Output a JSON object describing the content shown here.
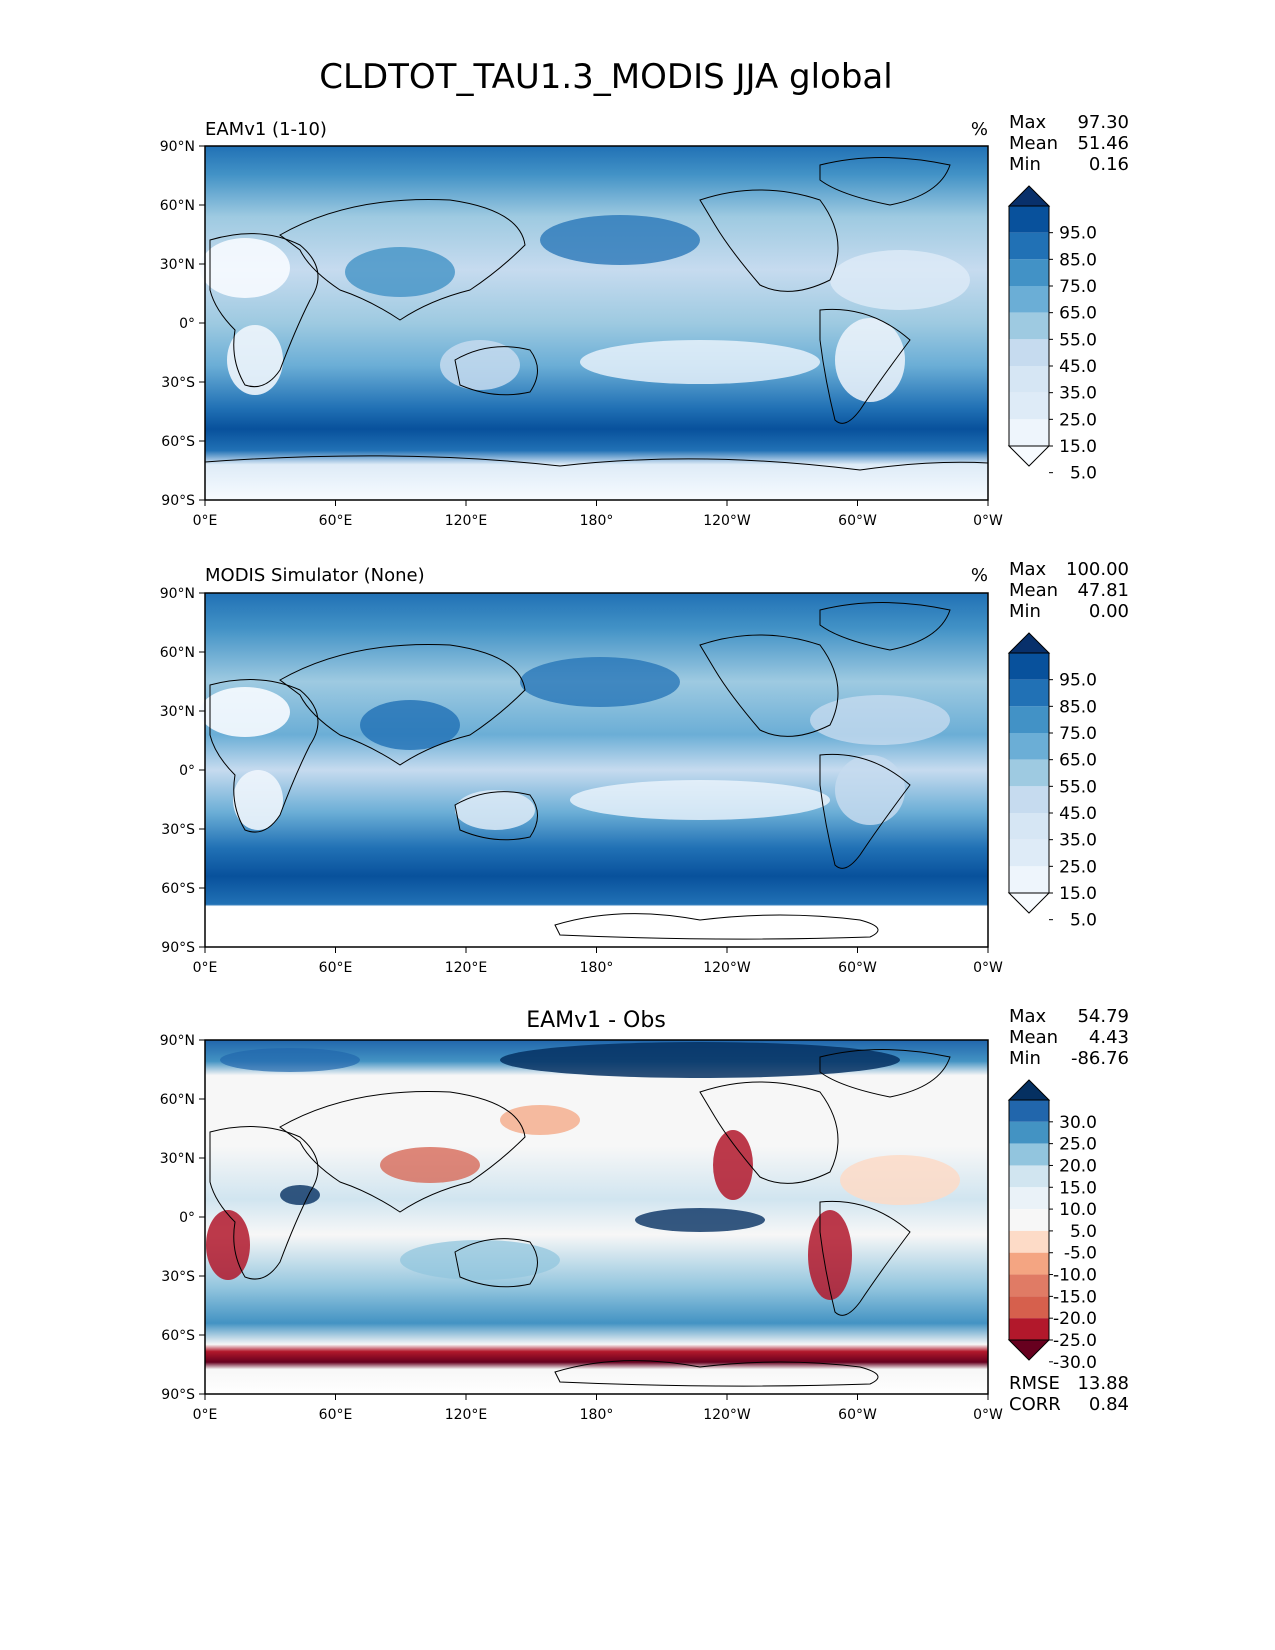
{
  "figure_title": "CLDTOT_TAU1.3_MODIS JJA global",
  "x_ticks": [
    "0°E",
    "60°E",
    "120°E",
    "180°",
    "120°W",
    "60°W",
    "0°W"
  ],
  "y_ticks": [
    "90°N",
    "60°N",
    "30°N",
    "0°",
    "30°S",
    "60°S",
    "90°S"
  ],
  "panels": [
    {
      "name": "test",
      "left_title": "EAMv1 (1-10)",
      "center_title": "",
      "units": "%",
      "stats": [
        {
          "label": "Max",
          "value": "97.30"
        },
        {
          "label": "Mean",
          "value": "51.46"
        },
        {
          "label": "Min",
          "value": "0.16"
        }
      ],
      "colorbar": {
        "labels": [
          "95.0",
          "85.0",
          "75.0",
          "65.0",
          "55.0",
          "45.0",
          "35.0",
          "25.0",
          "15.0",
          "5.0"
        ],
        "colors": [
          "#08306b",
          "#08519c",
          "#2171b5",
          "#4292c6",
          "#6baed6",
          "#9ecae1",
          "#c6dbef",
          "#d6e6f4",
          "#deebf7",
          "#eef5fc",
          "#f7fbff"
        ]
      },
      "extra_stats": []
    },
    {
      "name": "reference",
      "left_title": "MODIS Simulator (None)",
      "center_title": "",
      "units": "%",
      "stats": [
        {
          "label": "Max",
          "value": "100.00"
        },
        {
          "label": "Mean",
          "value": "47.81"
        },
        {
          "label": "Min",
          "value": "0.00"
        }
      ],
      "colorbar": {
        "labels": [
          "95.0",
          "85.0",
          "75.0",
          "65.0",
          "55.0",
          "45.0",
          "35.0",
          "25.0",
          "15.0",
          "5.0"
        ],
        "colors": [
          "#08306b",
          "#08519c",
          "#2171b5",
          "#4292c6",
          "#6baed6",
          "#9ecae1",
          "#c6dbef",
          "#d6e6f4",
          "#deebf7",
          "#eef5fc",
          "#f7fbff"
        ]
      },
      "extra_stats": []
    },
    {
      "name": "difference",
      "left_title": "",
      "center_title": "EAMv1 - Obs",
      "units": "",
      "stats": [
        {
          "label": "Max",
          "value": "54.79"
        },
        {
          "label": "Mean",
          "value": "4.43"
        },
        {
          "label": "Min",
          "value": "-86.76"
        }
      ],
      "colorbar": {
        "labels": [
          "30.0",
          "25.0",
          "20.0",
          "15.0",
          "10.0",
          "5.0",
          "-5.0",
          "-10.0",
          "-15.0",
          "-20.0",
          "-25.0",
          "-30.0"
        ],
        "colors": [
          "#053061",
          "#2166ac",
          "#4393c3",
          "#92c5de",
          "#d1e5f0",
          "#eaf2f8",
          "#f7f7f7",
          "#fddbc7",
          "#f4a582",
          "#e07b65",
          "#d6604d",
          "#b2182b",
          "#67001f"
        ]
      },
      "extra_stats": [
        {
          "label": "RMSE",
          "value": "13.88"
        },
        {
          "label": "CORR",
          "value": "0.84"
        }
      ]
    }
  ]
}
